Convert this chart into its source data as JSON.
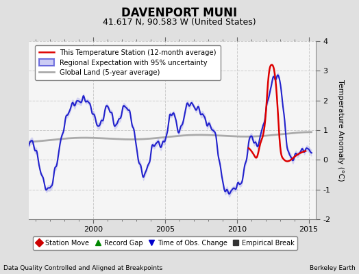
{
  "title": "DAVENPORT MUNI",
  "subtitle": "41.617 N, 90.583 W (United States)",
  "xlabel_left": "Data Quality Controlled and Aligned at Breakpoints",
  "xlabel_right": "Berkeley Earth",
  "ylabel": "Temperature Anomaly (°C)",
  "ylim": [
    -2,
    4
  ],
  "xlim_start": 1995.5,
  "xlim_end": 2015.5,
  "bg_color": "#e0e0e0",
  "plot_bg_color": "#f5f5f5",
  "grid_color": "#cccccc",
  "title_fontsize": 12,
  "subtitle_fontsize": 9,
  "tick_fontsize": 8,
  "label_fontsize": 8,
  "red_line_color": "#dd0000",
  "blue_line_color": "#2222cc",
  "blue_band_color": "#aaaaee",
  "gray_line_color": "#aaaaaa",
  "legend_entries": [
    {
      "label": "This Temperature Station (12-month average)",
      "color": "#dd0000",
      "lw": 1.8
    },
    {
      "label": "Regional Expectation with 95% uncertainty",
      "color": "#2222cc",
      "lw": 1.5
    },
    {
      "label": "Global Land (5-year average)",
      "color": "#aaaaaa",
      "lw": 2.0
    }
  ],
  "bottom_legend": [
    {
      "label": "Station Move",
      "color": "#cc0000",
      "marker": "D"
    },
    {
      "label": "Record Gap",
      "color": "#008800",
      "marker": "^"
    },
    {
      "label": "Time of Obs. Change",
      "color": "#0000cc",
      "marker": "v"
    },
    {
      "label": "Empirical Break",
      "color": "#333333",
      "marker": "s"
    }
  ]
}
